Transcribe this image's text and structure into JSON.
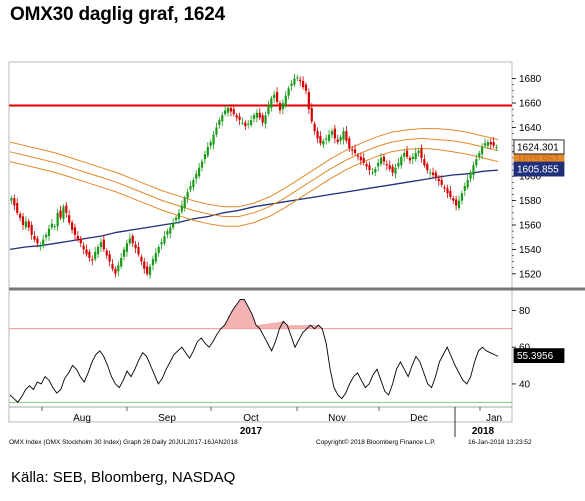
{
  "title": "OMX30 daglig graf, 1624",
  "source": "Källa: SEB, Bloomberg, NASDAQ",
  "footer": {
    "left": "OMX Index (OMX Stockholm 30 Index) Graph 26  Daily 20JUL2017-16JAN2018",
    "middle": "Copyright© 2018 Bloomberg Finance L.P.",
    "right": "16-Jan-2018 13:23:52"
  },
  "chart_data": [
    {
      "type": "candlestick",
      "panel": "price",
      "yticks": [
        1520,
        1540,
        1560,
        1580,
        1600,
        1620,
        1640,
        1660,
        1680
      ],
      "ylim": [
        1510,
        1692
      ],
      "xlabels": [
        "Aug",
        "Sep",
        "Oct",
        "Nov",
        "Dec",
        "Jan"
      ],
      "year_labels": [
        "2017",
        "2018"
      ],
      "resistance_level": 1658,
      "last_price_label": "1624.301",
      "ma_label": "1605.855",
      "hidden_label_partial": "1620.718",
      "hidden_label_partial2": "1615.957",
      "close": [
        1582,
        1576,
        1570,
        1566,
        1560,
        1563,
        1558,
        1552,
        1548,
        1545,
        1543,
        1548,
        1552,
        1557,
        1561,
        1559,
        1570,
        1566,
        1575,
        1570,
        1562,
        1556,
        1552,
        1548,
        1545,
        1540,
        1536,
        1533,
        1531,
        1538,
        1542,
        1546,
        1540,
        1535,
        1530,
        1524,
        1520,
        1527,
        1533,
        1540,
        1545,
        1549,
        1545,
        1541,
        1536,
        1530,
        1524,
        1520,
        1526,
        1532,
        1537,
        1542,
        1546,
        1551,
        1555,
        1558,
        1562,
        1566,
        1570,
        1576,
        1582,
        1587,
        1592,
        1597,
        1602,
        1607,
        1612,
        1618,
        1624,
        1628,
        1634,
        1640,
        1646,
        1650,
        1654,
        1656,
        1653,
        1651,
        1648,
        1646,
        1644,
        1641,
        1643,
        1646,
        1650,
        1652,
        1648,
        1644,
        1650,
        1658,
        1664,
        1667,
        1661,
        1654,
        1660,
        1666,
        1672,
        1676,
        1680,
        1681,
        1678,
        1673,
        1670,
        1655,
        1645,
        1637,
        1631,
        1627,
        1629,
        1631,
        1634,
        1637,
        1631,
        1628,
        1632,
        1637,
        1629,
        1623,
        1621,
        1619,
        1616,
        1613,
        1611,
        1608,
        1605,
        1603,
        1606,
        1611,
        1615,
        1612,
        1609,
        1606,
        1603,
        1607,
        1611,
        1616,
        1619,
        1616,
        1613,
        1616,
        1619,
        1621,
        1615,
        1609,
        1605,
        1603,
        1601,
        1599,
        1596,
        1593,
        1590,
        1586,
        1583,
        1580,
        1576,
        1580,
        1586,
        1592,
        1597,
        1603,
        1609,
        1614,
        1619,
        1624,
        1627,
        1628,
        1626,
        1625,
        1624
      ],
      "series": [
        {
          "name": "MA",
          "values": [
            1540,
            1542,
            1543,
            1545,
            1547,
            1549,
            1551,
            1554,
            1556,
            1558,
            1560,
            1562,
            1565,
            1567,
            1570,
            1572,
            1575,
            1577,
            1579,
            1581,
            1583,
            1585,
            1587,
            1589,
            1591,
            1593,
            1595,
            1597,
            1599,
            1601,
            1602,
            1604,
            1605
          ]
        },
        {
          "name": "Upper band",
          "values": [
            1628,
            1625,
            1622,
            1619,
            1615,
            1611,
            1607,
            1603,
            1598,
            1593,
            1588,
            1584,
            1580,
            1577,
            1575,
            1575,
            1578,
            1583,
            1590,
            1598,
            1606,
            1614,
            1621,
            1627,
            1632,
            1636,
            1638,
            1639,
            1639,
            1638,
            1636,
            1633,
            1630
          ]
        },
        {
          "name": "Middle band",
          "values": [
            1620,
            1617,
            1614,
            1611,
            1607,
            1603,
            1599,
            1595,
            1590,
            1585,
            1580,
            1576,
            1572,
            1569,
            1567,
            1567,
            1570,
            1575,
            1582,
            1590,
            1598,
            1606,
            1613,
            1619,
            1624,
            1628,
            1630,
            1631,
            1630,
            1629,
            1627,
            1624,
            1621
          ]
        },
        {
          "name": "Lower band",
          "values": [
            1612,
            1609,
            1606,
            1603,
            1599,
            1595,
            1591,
            1587,
            1582,
            1577,
            1572,
            1568,
            1564,
            1561,
            1559,
            1559,
            1562,
            1567,
            1574,
            1582,
            1590,
            1598,
            1605,
            1611,
            1616,
            1620,
            1622,
            1623,
            1622,
            1620,
            1618,
            1615,
            1612
          ]
        }
      ]
    },
    {
      "type": "line",
      "panel": "oscillator",
      "yticks": [
        40,
        60,
        80
      ],
      "ylim": [
        28,
        90
      ],
      "overbought": 70,
      "oversold": 30,
      "last_value_label": "55.3956",
      "values": [
        34,
        32,
        30,
        33,
        37,
        39,
        37,
        41,
        40,
        44,
        42,
        38,
        35,
        37,
        43,
        46,
        50,
        48,
        44,
        41,
        46,
        52,
        56,
        58,
        55,
        50,
        44,
        40,
        38,
        42,
        47,
        44,
        48,
        53,
        57,
        55,
        50,
        45,
        40,
        43,
        48,
        52,
        56,
        58,
        60,
        57,
        54,
        58,
        63,
        65,
        62,
        60,
        63,
        67,
        70,
        72,
        76,
        80,
        83,
        86,
        86,
        82,
        78,
        72,
        70,
        66,
        62,
        58,
        63,
        70,
        74,
        72,
        66,
        60,
        64,
        68,
        70,
        72,
        70,
        72,
        70,
        62,
        48,
        38,
        34,
        32,
        35,
        40,
        44,
        46,
        42,
        38,
        40,
        45,
        48,
        42,
        36,
        34,
        40,
        48,
        52,
        48,
        44,
        50,
        55,
        52,
        46,
        40,
        38,
        44,
        52,
        56,
        60,
        55,
        50,
        46,
        42,
        40,
        44,
        52,
        58,
        60,
        58,
        57,
        56,
        55
      ]
    }
  ]
}
